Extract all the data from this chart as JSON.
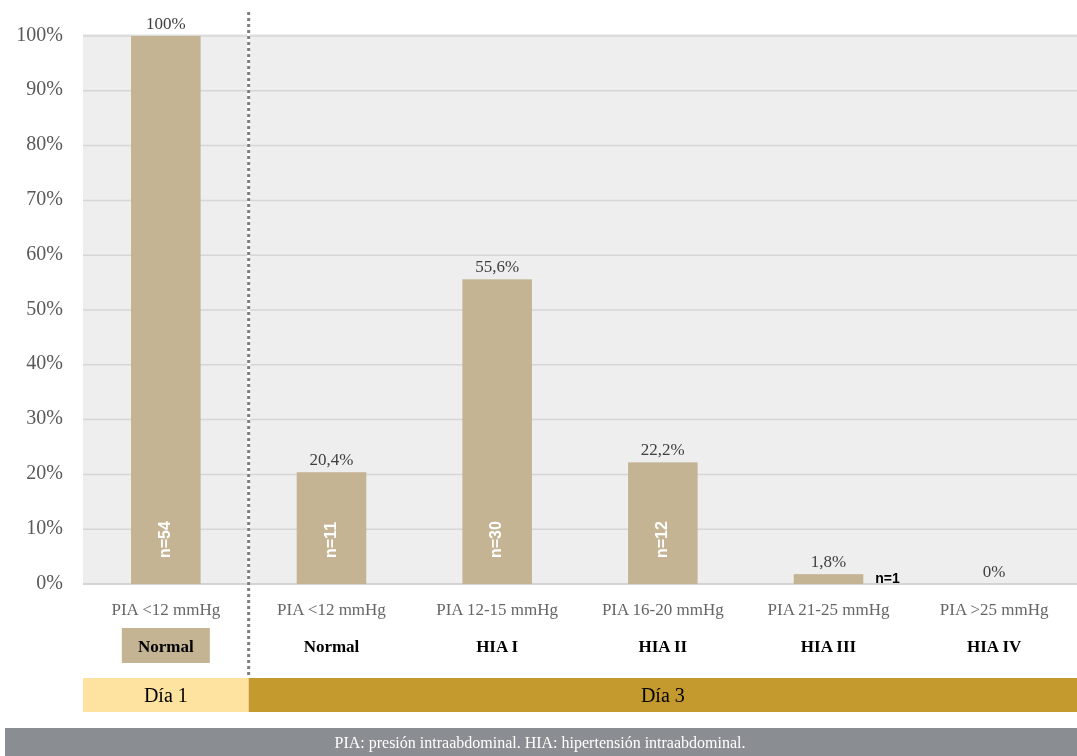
{
  "chart_data": [
    {
      "type": "bar",
      "xlabel": "Día 1",
      "categories": [
        "PIA <12 mmHg\nNormal"
      ],
      "values": [
        100
      ],
      "color": "#c4b494",
      "value_labels": [
        "100%"
      ],
      "ylim": [
        0,
        100
      ],
      "yticks": [
        {
          "value": 0,
          "label": "0%"
        },
        {
          "value": 10,
          "label": "10%"
        },
        {
          "value": 20,
          "label": "20%"
        },
        {
          "value": 30,
          "label": "30%"
        },
        {
          "value": 40,
          "label": "40%"
        },
        {
          "value": 50,
          "label": "50%"
        },
        {
          "value": 60,
          "label": "60%"
        },
        {
          "value": 70,
          "label": "70%"
        },
        {
          "value": 80,
          "label": "80%"
        },
        {
          "value": 90,
          "label": "90%"
        },
        {
          "value": 100,
          "label": "100%"
        }
      ],
      "grid": "y",
      "annotations": [
        "n=54"
      ]
    },
    {
      "type": "bar",
      "xlabel": "Día 3",
      "categories": [
        "PIA <12 mmHg\nNormal",
        "PIA 12-15 mmHg\nHIA I",
        "PIA 16-20 mmHg\nHIA II",
        "PIA 21-25 mmHg\nHIA III",
        "PIA >25 mmHg\nHIA IV"
      ],
      "values": [
        20.4,
        55.6,
        22.2,
        1.8,
        0
      ],
      "color": "#c4b494",
      "value_labels": [
        "20,4%",
        "55,6%",
        "22,2%",
        "1,8%",
        "0%"
      ],
      "ylim": [
        0,
        100
      ],
      "yticks": [
        0,
        10,
        20,
        30,
        40,
        50,
        60,
        70,
        80,
        90,
        100
      ],
      "grid": "y",
      "tick_labels": "x",
      "annotations": [
        "n=11",
        "n=30",
        "n=12",
        "n=1",
        "PIA: presión intraabdominal. HIA: hipertensión intraabdominal."
      ]
    }
  ]
}
